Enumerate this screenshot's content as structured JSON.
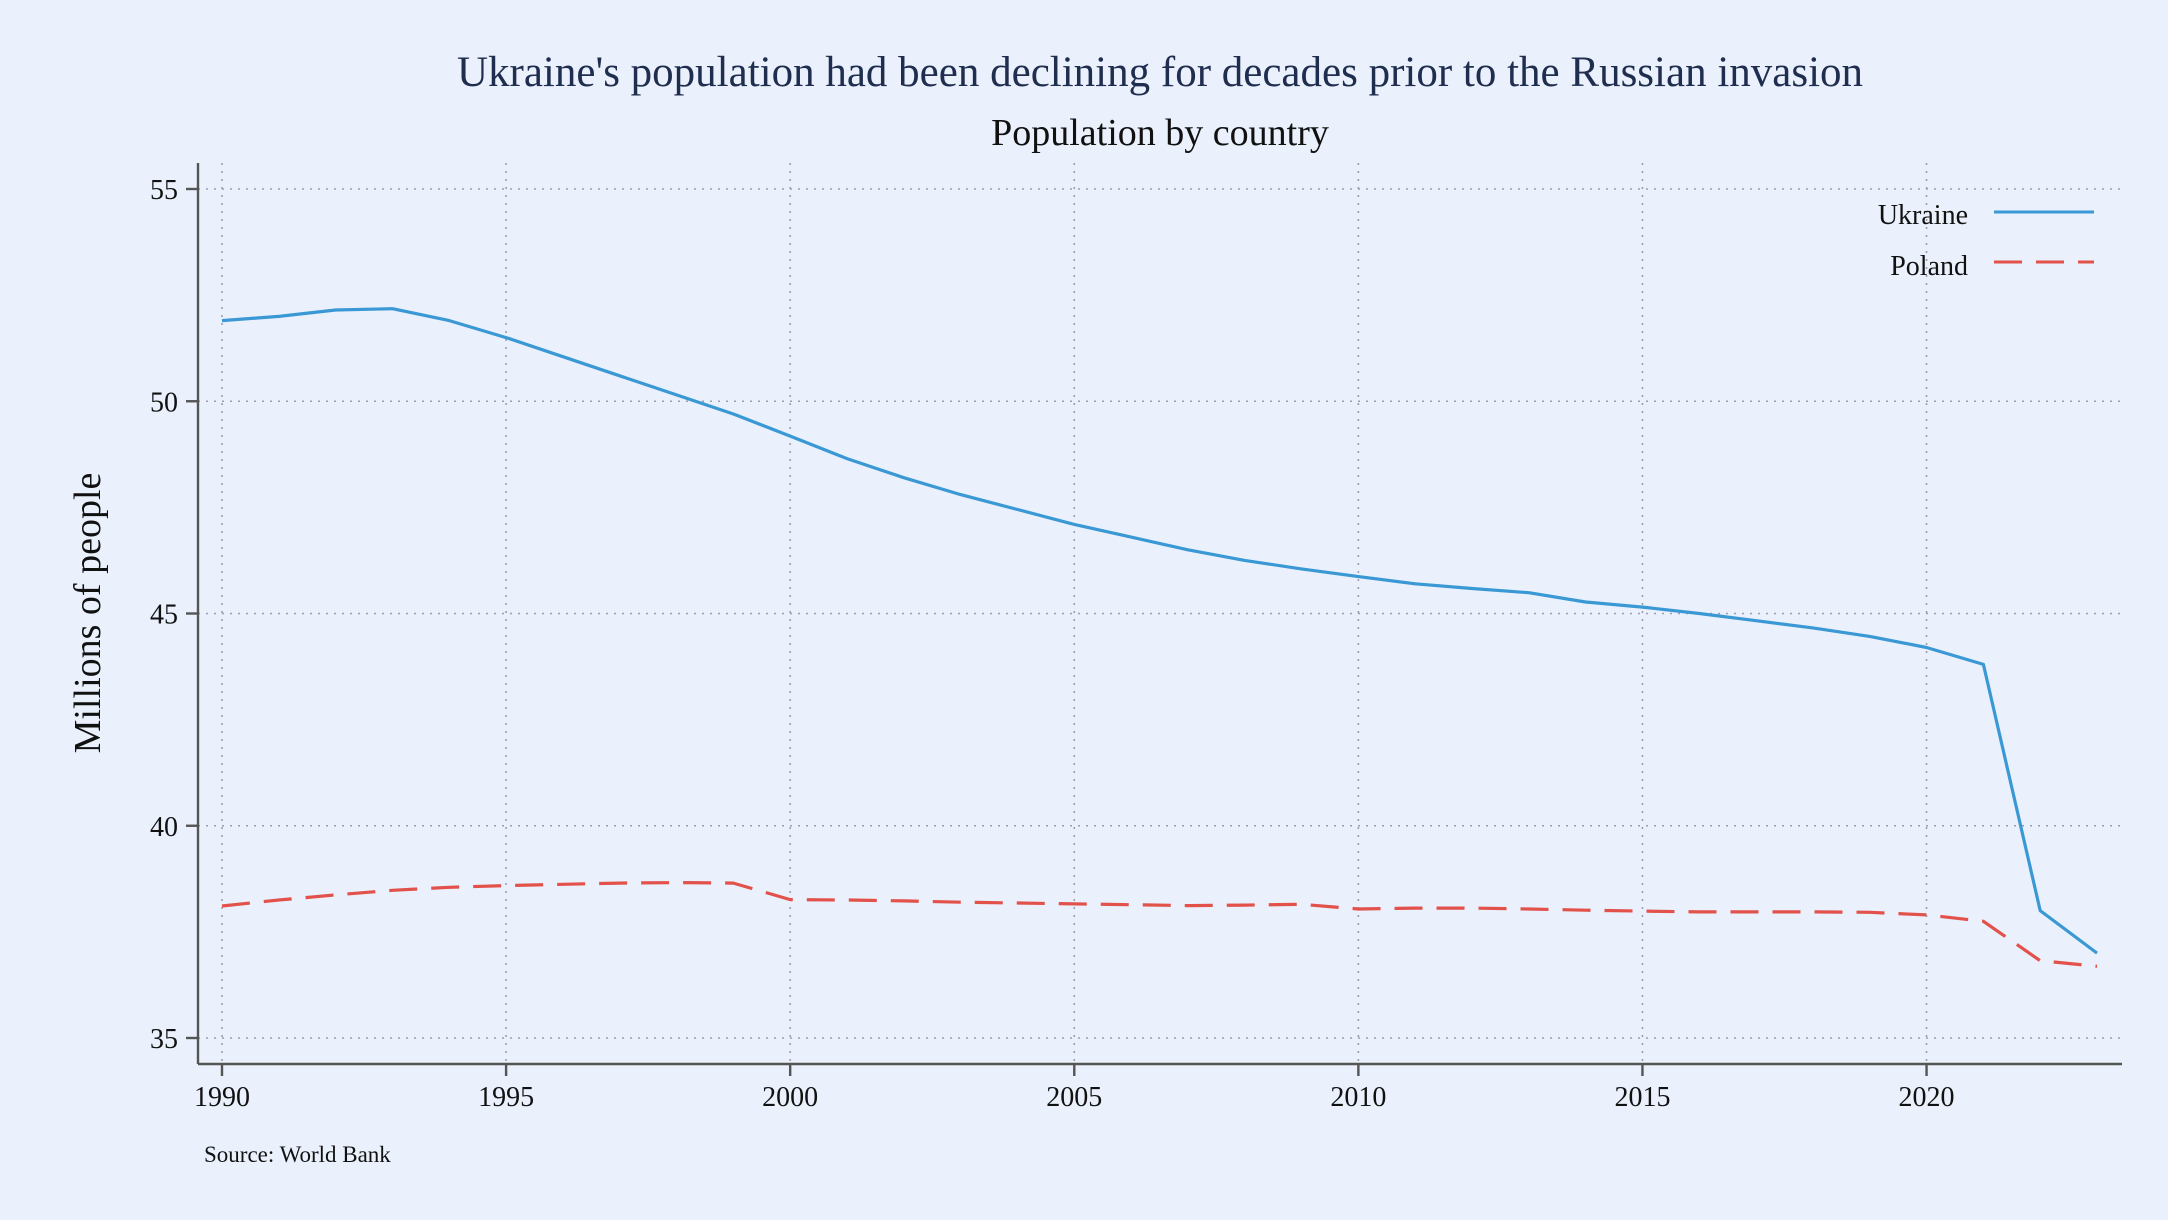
{
  "chart_data": {
    "type": "line",
    "title": "Ukraine's population had been declining for decades prior to the Russian invasion",
    "subtitle": "Population by country",
    "xlabel": "",
    "ylabel": "Millions of people",
    "source": "Source: World Bank",
    "xlim": [
      1990,
      2023
    ],
    "ylim": [
      35,
      55
    ],
    "x_ticks": [
      1990,
      1995,
      2000,
      2005,
      2010,
      2015,
      2020
    ],
    "y_ticks": [
      35,
      40,
      45,
      50,
      55
    ],
    "grid": true,
    "legend_position": "top-right",
    "colors": {
      "title": "#1f2d4f",
      "ukraine": "#3a98d4",
      "poland": "#e2514a"
    },
    "x": [
      1990,
      1991,
      1992,
      1993,
      1994,
      1995,
      1996,
      1997,
      1998,
      1999,
      2000,
      2001,
      2002,
      2003,
      2004,
      2005,
      2006,
      2007,
      2008,
      2009,
      2010,
      2011,
      2012,
      2013,
      2014,
      2015,
      2016,
      2017,
      2018,
      2019,
      2020,
      2021,
      2022,
      2023
    ],
    "series": [
      {
        "name": "Ukraine",
        "style": "solid",
        "values": [
          51.9,
          52.0,
          52.15,
          52.18,
          51.9,
          51.5,
          51.05,
          50.6,
          50.15,
          49.7,
          49.18,
          48.65,
          48.2,
          47.8,
          47.45,
          47.1,
          46.8,
          46.5,
          46.25,
          46.05,
          45.87,
          45.7,
          45.59,
          45.49,
          45.27,
          45.15,
          45.0,
          44.83,
          44.66,
          44.46,
          44.2,
          43.8,
          38.0,
          37.0
        ]
      },
      {
        "name": "Poland",
        "style": "dashed",
        "values": [
          38.11,
          38.25,
          38.37,
          38.48,
          38.55,
          38.59,
          38.62,
          38.65,
          38.66,
          38.65,
          38.26,
          38.25,
          38.23,
          38.2,
          38.18,
          38.16,
          38.14,
          38.12,
          38.13,
          38.15,
          38.04,
          38.06,
          38.06,
          38.04,
          38.01,
          37.99,
          37.97,
          37.97,
          37.97,
          37.96,
          37.9,
          37.75,
          36.82,
          36.69
        ]
      }
    ]
  }
}
